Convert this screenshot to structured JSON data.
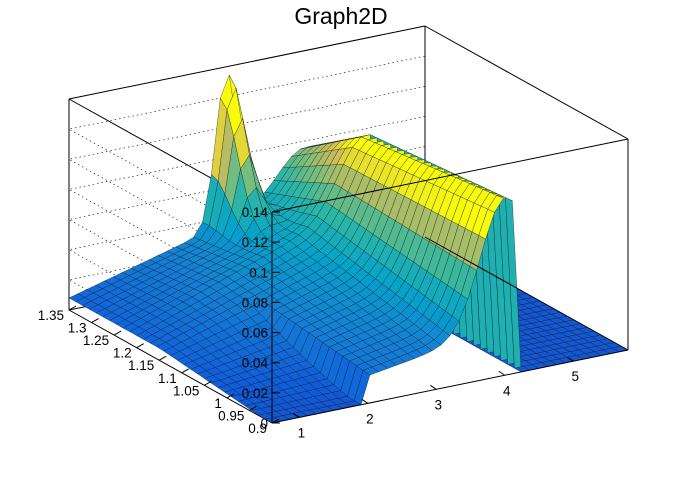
{
  "chart_data": {
    "type": "surface3d",
    "title": "Graph2D",
    "xlabel": "",
    "ylabel": "",
    "zlabel": "",
    "xlim": [
      0.6,
      5.8
    ],
    "ylim": [
      0.9,
      1.35
    ],
    "zlim": [
      0,
      0.14
    ],
    "x_ticks": [
      "1",
      "2",
      "3",
      "4",
      "5"
    ],
    "x_tick_values": [
      1,
      2,
      3,
      4,
      5
    ],
    "y_ticks": [
      "0.9",
      "0.95",
      "1",
      "1.05",
      "1.1",
      "1.15",
      "1.2",
      "1.25",
      "1.3",
      "1.35"
    ],
    "y_tick_values": [
      0.9,
      0.95,
      1.0,
      1.05,
      1.1,
      1.15,
      1.2,
      1.25,
      1.3,
      1.35
    ],
    "z_ticks": [
      "0",
      "0.02",
      "0.04",
      "0.06",
      "0.08",
      "0.1",
      "0.12",
      "0.14"
    ],
    "z_tick_values": [
      0,
      0.02,
      0.04,
      0.06,
      0.08,
      0.1,
      0.12,
      0.14
    ],
    "grid": true,
    "colormap": "kBird (blue-cyan-green-yellow)",
    "features": [
      {
        "name": "sharp peak",
        "x": 2.9,
        "y": 1.35,
        "z": 0.135
      },
      {
        "name": "ridge maximum",
        "x": 4.0,
        "y": 0.97,
        "z": 0.095
      },
      {
        "name": "surface edge at y=1.35 side",
        "x": 0.6,
        "y": 1.35,
        "z": 0.01
      }
    ],
    "colors": {
      "low": "#352a87",
      "mid_low": "#0f5cdd",
      "mid": "#1aa8c8",
      "mid_high": "#61c288",
      "high": "#f9fb0e"
    }
  }
}
